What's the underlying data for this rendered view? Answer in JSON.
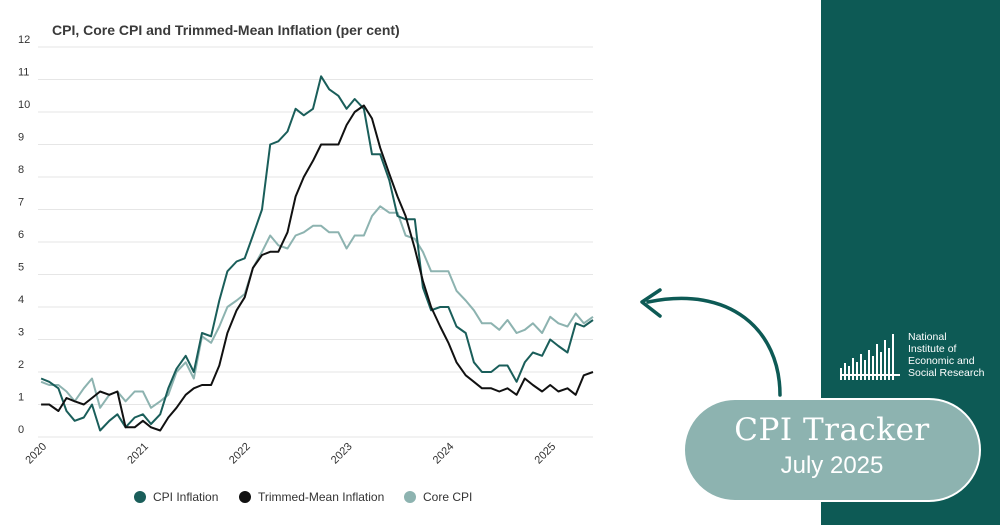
{
  "chart_data": {
    "type": "line",
    "title": "CPI, Core CPI and Trimmed-Mean Inflation (per cent)",
    "xlabel": "",
    "ylabel": "",
    "ylim": [
      0,
      12
    ],
    "yticks": [
      "0",
      "1",
      "2",
      "3",
      "4",
      "5",
      "6",
      "7",
      "8",
      "9",
      "10",
      "11",
      "12"
    ],
    "xticks": [
      {
        "label": "2020",
        "x": 2020.0
      },
      {
        "label": "2021",
        "x": 2021.0
      },
      {
        "label": "2022",
        "x": 2022.0
      },
      {
        "label": "2023",
        "x": 2023.0
      },
      {
        "label": "2024",
        "x": 2024.0
      },
      {
        "label": "2025",
        "x": 2025.0
      }
    ],
    "xlim": [
      2019.97,
      2025.42
    ],
    "grid": true,
    "legend_position": "bottom",
    "series": [
      {
        "name": "CPI Inflation",
        "color": "#1a5e5a",
        "points": [
          [
            2020.0,
            1.8
          ],
          [
            2020.08,
            1.7
          ],
          [
            2020.17,
            1.5
          ],
          [
            2020.25,
            0.8
          ],
          [
            2020.33,
            0.5
          ],
          [
            2020.42,
            0.6
          ],
          [
            2020.5,
            1.0
          ],
          [
            2020.58,
            0.2
          ],
          [
            2020.67,
            0.5
          ],
          [
            2020.75,
            0.7
          ],
          [
            2020.83,
            0.3
          ],
          [
            2020.92,
            0.6
          ],
          [
            2021.0,
            0.7
          ],
          [
            2021.08,
            0.4
          ],
          [
            2021.17,
            0.7
          ],
          [
            2021.25,
            1.5
          ],
          [
            2021.33,
            2.1
          ],
          [
            2021.42,
            2.5
          ],
          [
            2021.5,
            2.0
          ],
          [
            2021.58,
            3.2
          ],
          [
            2021.67,
            3.1
          ],
          [
            2021.75,
            4.2
          ],
          [
            2021.83,
            5.1
          ],
          [
            2021.92,
            5.4
          ],
          [
            2022.0,
            5.5
          ],
          [
            2022.08,
            6.2
          ],
          [
            2022.17,
            7.0
          ],
          [
            2022.25,
            9.0
          ],
          [
            2022.33,
            9.1
          ],
          [
            2022.42,
            9.4
          ],
          [
            2022.5,
            10.1
          ],
          [
            2022.58,
            9.9
          ],
          [
            2022.67,
            10.1
          ],
          [
            2022.75,
            11.1
          ],
          [
            2022.83,
            10.7
          ],
          [
            2022.92,
            10.5
          ],
          [
            2023.0,
            10.1
          ],
          [
            2023.08,
            10.4
          ],
          [
            2023.17,
            10.1
          ],
          [
            2023.25,
            8.7
          ],
          [
            2023.33,
            8.7
          ],
          [
            2023.42,
            7.9
          ],
          [
            2023.5,
            6.8
          ],
          [
            2023.58,
            6.7
          ],
          [
            2023.67,
            6.7
          ],
          [
            2023.75,
            4.6
          ],
          [
            2023.83,
            3.9
          ],
          [
            2023.92,
            4.0
          ],
          [
            2024.0,
            4.0
          ],
          [
            2024.08,
            3.4
          ],
          [
            2024.17,
            3.2
          ],
          [
            2024.25,
            2.3
          ],
          [
            2024.33,
            2.0
          ],
          [
            2024.42,
            2.0
          ],
          [
            2024.5,
            2.2
          ],
          [
            2024.58,
            2.2
          ],
          [
            2024.67,
            1.7
          ],
          [
            2024.75,
            2.3
          ],
          [
            2024.83,
            2.6
          ],
          [
            2024.92,
            2.5
          ],
          [
            2025.0,
            3.0
          ],
          [
            2025.08,
            2.8
          ],
          [
            2025.17,
            2.6
          ],
          [
            2025.25,
            3.5
          ],
          [
            2025.33,
            3.4
          ],
          [
            2025.42,
            3.6
          ]
        ]
      },
      {
        "name": "Trimmed-Mean Inflation",
        "color": "#111111",
        "points": [
          [
            2020.0,
            1.0
          ],
          [
            2020.08,
            1.0
          ],
          [
            2020.17,
            0.8
          ],
          [
            2020.25,
            1.2
          ],
          [
            2020.33,
            1.1
          ],
          [
            2020.42,
            1.0
          ],
          [
            2020.5,
            1.2
          ],
          [
            2020.58,
            1.4
          ],
          [
            2020.67,
            1.3
          ],
          [
            2020.75,
            1.4
          ],
          [
            2020.83,
            0.3
          ],
          [
            2020.92,
            0.3
          ],
          [
            2021.0,
            0.5
          ],
          [
            2021.08,
            0.3
          ],
          [
            2021.17,
            0.2
          ],
          [
            2021.25,
            0.6
          ],
          [
            2021.33,
            0.9
          ],
          [
            2021.42,
            1.3
          ],
          [
            2021.5,
            1.5
          ],
          [
            2021.58,
            1.6
          ],
          [
            2021.67,
            1.6
          ],
          [
            2021.75,
            2.2
          ],
          [
            2021.83,
            3.2
          ],
          [
            2021.92,
            3.9
          ],
          [
            2022.0,
            4.3
          ],
          [
            2022.08,
            5.2
          ],
          [
            2022.17,
            5.6
          ],
          [
            2022.25,
            5.7
          ],
          [
            2022.33,
            5.7
          ],
          [
            2022.42,
            6.3
          ],
          [
            2022.5,
            7.4
          ],
          [
            2022.58,
            8.0
          ],
          [
            2022.67,
            8.5
          ],
          [
            2022.75,
            9.0
          ],
          [
            2022.83,
            9.0
          ],
          [
            2022.92,
            9.0
          ],
          [
            2023.0,
            9.6
          ],
          [
            2023.08,
            10.0
          ],
          [
            2023.17,
            10.2
          ],
          [
            2023.25,
            9.8
          ],
          [
            2023.33,
            8.9
          ],
          [
            2023.42,
            8.1
          ],
          [
            2023.5,
            7.4
          ],
          [
            2023.58,
            6.8
          ],
          [
            2023.67,
            5.8
          ],
          [
            2023.75,
            4.8
          ],
          [
            2023.83,
            4.0
          ],
          [
            2023.92,
            3.4
          ],
          [
            2024.0,
            2.9
          ],
          [
            2024.08,
            2.3
          ],
          [
            2024.17,
            1.9
          ],
          [
            2024.25,
            1.7
          ],
          [
            2024.33,
            1.5
          ],
          [
            2024.42,
            1.5
          ],
          [
            2024.5,
            1.4
          ],
          [
            2024.58,
            1.5
          ],
          [
            2024.67,
            1.3
          ],
          [
            2024.75,
            1.8
          ],
          [
            2024.83,
            1.6
          ],
          [
            2024.92,
            1.4
          ],
          [
            2025.0,
            1.6
          ],
          [
            2025.08,
            1.4
          ],
          [
            2025.17,
            1.5
          ],
          [
            2025.25,
            1.3
          ],
          [
            2025.33,
            1.9
          ],
          [
            2025.42,
            2.0
          ]
        ]
      },
      {
        "name": "Core CPI",
        "color": "#8db3b0",
        "points": [
          [
            2020.0,
            1.7
          ],
          [
            2020.08,
            1.6
          ],
          [
            2020.17,
            1.6
          ],
          [
            2020.25,
            1.4
          ],
          [
            2020.33,
            1.1
          ],
          [
            2020.42,
            1.5
          ],
          [
            2020.5,
            1.8
          ],
          [
            2020.58,
            0.9
          ],
          [
            2020.67,
            1.3
          ],
          [
            2020.75,
            1.4
          ],
          [
            2020.83,
            1.1
          ],
          [
            2020.92,
            1.4
          ],
          [
            2021.0,
            1.4
          ],
          [
            2021.08,
            0.9
          ],
          [
            2021.17,
            1.1
          ],
          [
            2021.25,
            1.3
          ],
          [
            2021.33,
            2.0
          ],
          [
            2021.42,
            2.3
          ],
          [
            2021.5,
            1.8
          ],
          [
            2021.58,
            3.1
          ],
          [
            2021.67,
            2.9
          ],
          [
            2021.75,
            3.4
          ],
          [
            2021.83,
            4.0
          ],
          [
            2021.92,
            4.2
          ],
          [
            2022.0,
            4.4
          ],
          [
            2022.08,
            5.2
          ],
          [
            2022.17,
            5.7
          ],
          [
            2022.25,
            6.2
          ],
          [
            2022.33,
            5.9
          ],
          [
            2022.42,
            5.8
          ],
          [
            2022.5,
            6.2
          ],
          [
            2022.58,
            6.3
          ],
          [
            2022.67,
            6.5
          ],
          [
            2022.75,
            6.5
          ],
          [
            2022.83,
            6.3
          ],
          [
            2022.92,
            6.3
          ],
          [
            2023.0,
            5.8
          ],
          [
            2023.08,
            6.2
          ],
          [
            2023.17,
            6.2
          ],
          [
            2023.25,
            6.8
          ],
          [
            2023.33,
            7.1
          ],
          [
            2023.42,
            6.9
          ],
          [
            2023.5,
            6.9
          ],
          [
            2023.58,
            6.2
          ],
          [
            2023.67,
            6.1
          ],
          [
            2023.75,
            5.7
          ],
          [
            2023.83,
            5.1
          ],
          [
            2023.92,
            5.1
          ],
          [
            2024.0,
            5.1
          ],
          [
            2024.08,
            4.5
          ],
          [
            2024.17,
            4.2
          ],
          [
            2024.25,
            3.9
          ],
          [
            2024.33,
            3.5
          ],
          [
            2024.42,
            3.5
          ],
          [
            2024.5,
            3.3
          ],
          [
            2024.58,
            3.6
          ],
          [
            2024.67,
            3.2
          ],
          [
            2024.75,
            3.3
          ],
          [
            2024.83,
            3.5
          ],
          [
            2024.92,
            3.2
          ],
          [
            2025.0,
            3.7
          ],
          [
            2025.08,
            3.5
          ],
          [
            2025.17,
            3.4
          ],
          [
            2025.25,
            3.8
          ],
          [
            2025.33,
            3.5
          ],
          [
            2025.42,
            3.7
          ]
        ]
      }
    ]
  },
  "colors": {
    "panel": "#0d5a55",
    "badge": "#8db3b0",
    "arrow": "#0d5a55"
  },
  "logo": {
    "line1": "National",
    "line2": "Institute of",
    "line3": "Economic and",
    "line4": "Social Research"
  },
  "badge": {
    "title": "CPI Tracker",
    "subtitle": "July 2025"
  }
}
